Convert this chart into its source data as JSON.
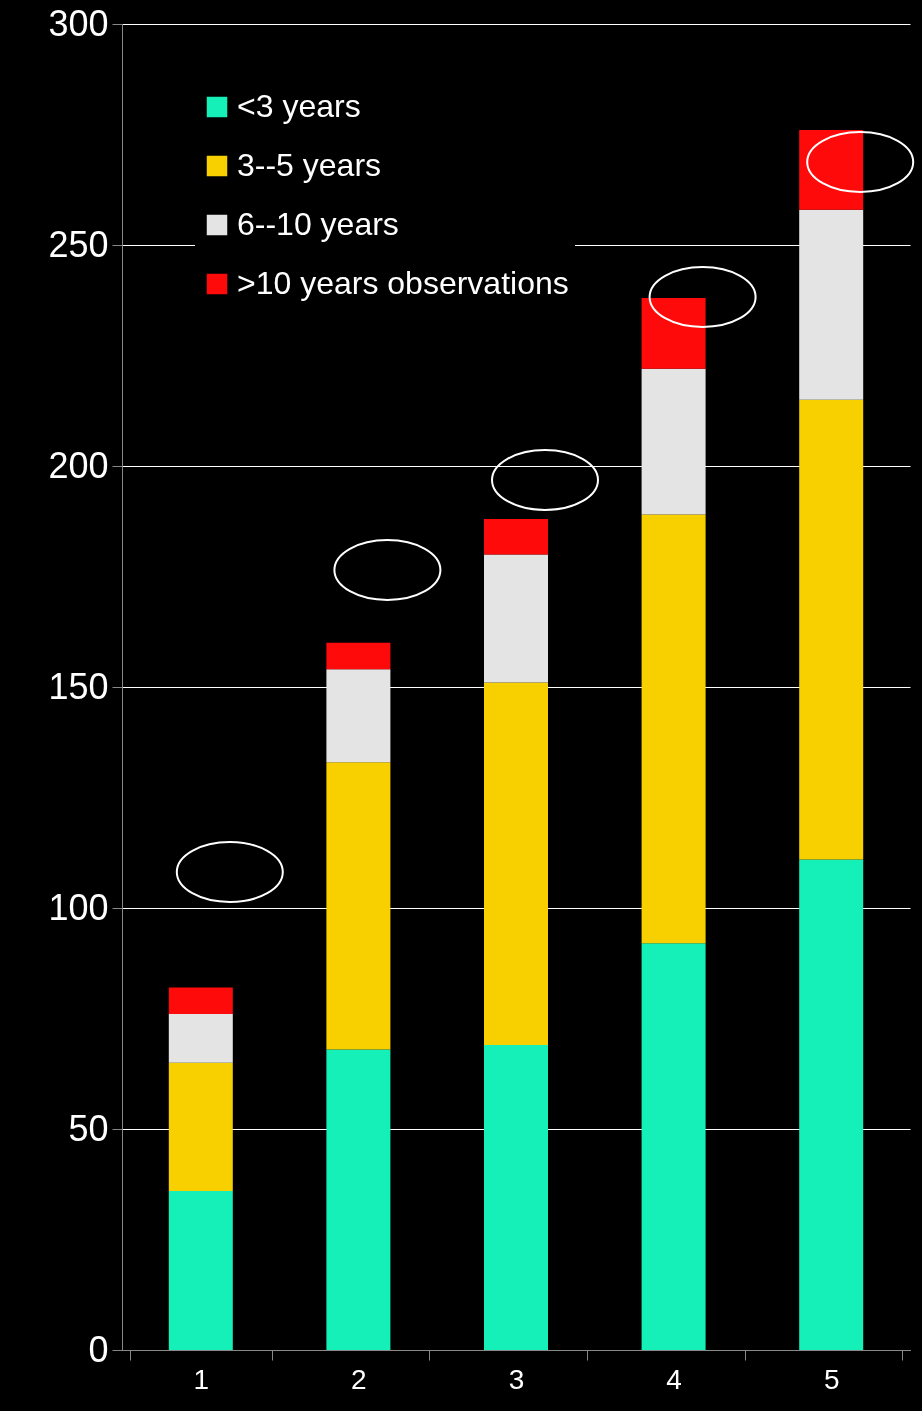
{
  "chart_data": {
    "type": "bar",
    "stacked": true,
    "categories": [
      "1",
      "2",
      "3",
      "4",
      "5"
    ],
    "series": [
      {
        "name": "<3 years",
        "color": "#14f0b8",
        "values": [
          36,
          68,
          69,
          92,
          111
        ]
      },
      {
        "name": "3--5 years",
        "color": "#f8d000",
        "values": [
          29,
          65,
          82,
          97,
          104
        ]
      },
      {
        "name": "6--10 years",
        "color": "#e4e4e4",
        "values": [
          11,
          21,
          29,
          33,
          43
        ]
      },
      {
        "name": ">10 years observations",
        "color": "#ff0a0a",
        "values": [
          6,
          6,
          8,
          16,
          18
        ]
      }
    ],
    "ylim": [
      0,
      300
    ],
    "yticks": [
      0,
      50,
      100,
      150,
      200,
      250,
      300
    ],
    "grid": "y",
    "legend": "top left"
  }
}
